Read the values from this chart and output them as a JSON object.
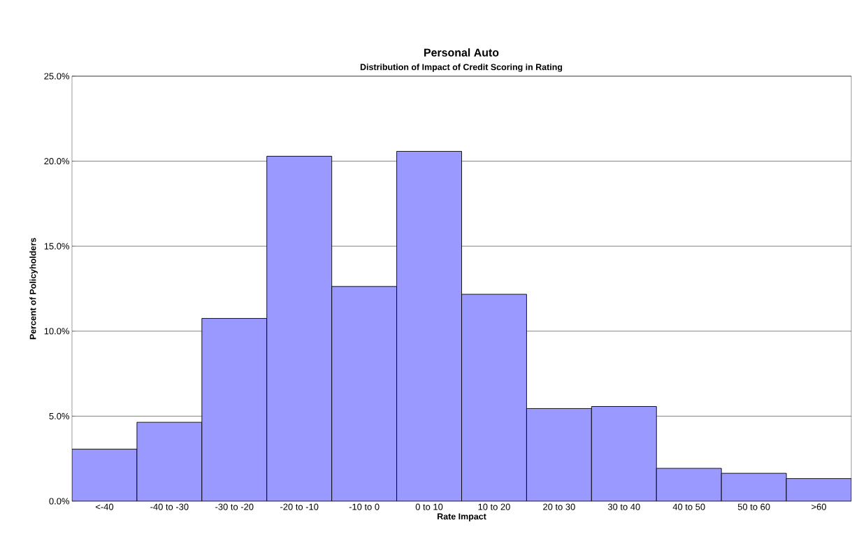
{
  "chart_data": {
    "type": "bar",
    "title": "Personal Auto",
    "subtitle": "Distribution of Impact of Credit Scoring in Rating",
    "xlabel": "Rate Impact",
    "ylabel": "Percent of Policyholders",
    "categories": [
      "<-40",
      "-40 to -30",
      "-30 to -20",
      "-20 to -10",
      "-10 to 0",
      "0 to 10",
      "10 to 20",
      "20 to 30",
      "30 to 40",
      "40 to 50",
      "50 to 60",
      ">60"
    ],
    "values": [
      3.06,
      4.64,
      10.75,
      20.29,
      12.63,
      20.58,
      12.17,
      5.45,
      5.57,
      1.93,
      1.64,
      1.33
    ],
    "color": "#9999ff",
    "ylim": [
      0,
      25
    ],
    "yticks": [
      {
        "value": 0,
        "label": "0.0%"
      },
      {
        "value": 5,
        "label": "5.0%"
      },
      {
        "value": 10,
        "label": "10.0%"
      },
      {
        "value": 15,
        "label": "15.0%"
      },
      {
        "value": 20,
        "label": "20.0%"
      },
      {
        "value": 25,
        "label": "25.0%"
      }
    ],
    "grid": "y"
  }
}
